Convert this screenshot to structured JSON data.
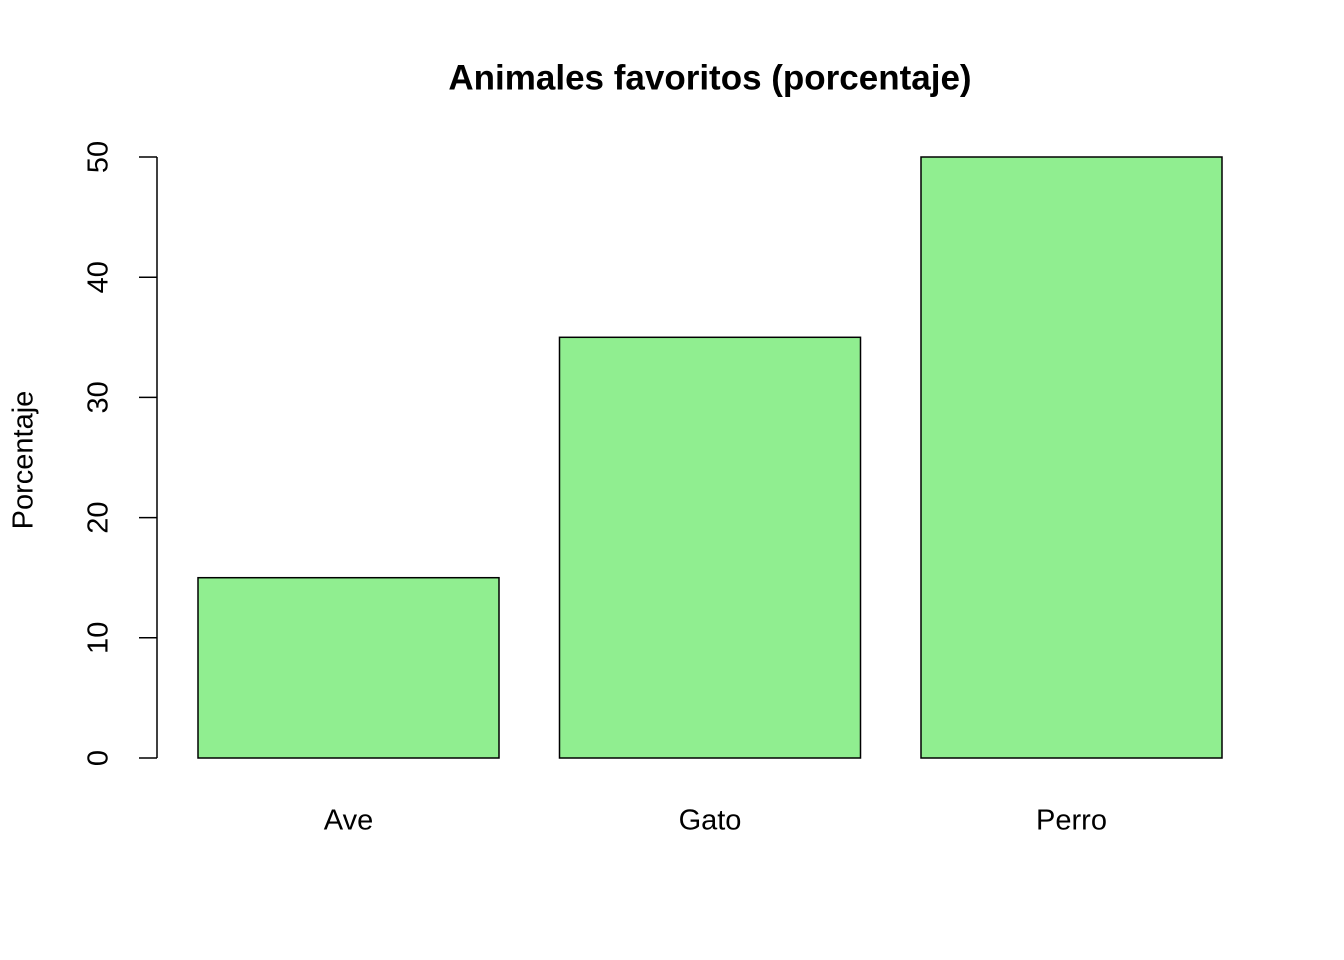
{
  "chart_data": {
    "type": "bar",
    "title": "Animales favoritos (porcentaje)",
    "y_label": "Porcentaje",
    "categories": [
      "Ave",
      "Gato",
      "Perro"
    ],
    "values": [
      15,
      35,
      50
    ],
    "color": "#90ee90",
    "ylim": [
      0,
      50
    ],
    "yticks": [
      0,
      10,
      20,
      30,
      40,
      50
    ]
  }
}
